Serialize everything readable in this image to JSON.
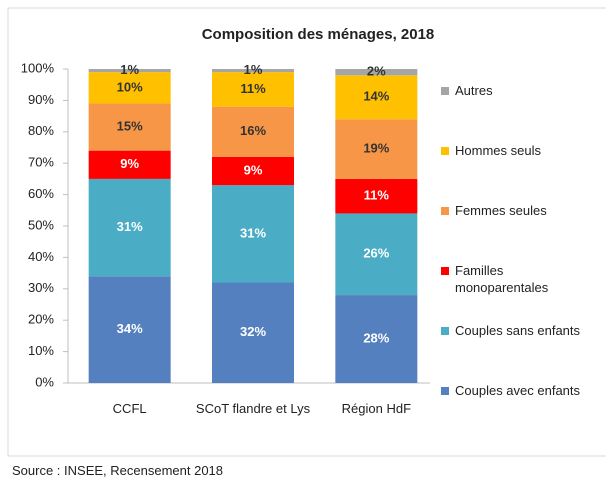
{
  "chart_data": {
    "type": "stacked_bar",
    "title": "Composition des ménages, 2018",
    "categories": [
      "CCFL",
      "SCoT flandre et Lys",
      "Région HdF"
    ],
    "series": [
      {
        "name": "Couples avec enfants",
        "color": "#5580c0",
        "values": [
          34,
          32,
          28
        ],
        "value_labels": [
          "34%",
          "32%",
          "28%"
        ]
      },
      {
        "name": "Couples sans enfants",
        "color": "#4bacc6",
        "values": [
          31,
          31,
          26
        ],
        "value_labels": [
          "31%",
          "31%",
          "26%"
        ]
      },
      {
        "name": "Familles monoparentales",
        "color": "#ff0000",
        "values": [
          9,
          9,
          11
        ],
        "value_labels": [
          "9%",
          "9%",
          "11%"
        ]
      },
      {
        "name": "Femmes seules",
        "color": "#f79646",
        "values": [
          15,
          16,
          19
        ],
        "value_labels": [
          "15%",
          "16%",
          "19%"
        ]
      },
      {
        "name": "Hommes seuls",
        "color": "#ffc000",
        "values": [
          10,
          11,
          14
        ],
        "value_labels": [
          "10%",
          "11%",
          "14%"
        ]
      },
      {
        "name": "Autres",
        "color": "#a5a5a5",
        "values": [
          1,
          1,
          2
        ],
        "value_labels": [
          "1%",
          "1%",
          "2%"
        ]
      }
    ],
    "ylim": [
      0,
      100
    ],
    "yticks": [
      {
        "value": 0,
        "label": "0%"
      },
      {
        "value": 10,
        "label": "10%"
      },
      {
        "value": 20,
        "label": "20%"
      },
      {
        "value": 30,
        "label": "30%"
      },
      {
        "value": 40,
        "label": "40%"
      },
      {
        "value": 50,
        "label": "50%"
      },
      {
        "value": 60,
        "label": "60%"
      },
      {
        "value": 70,
        "label": "70%"
      },
      {
        "value": 80,
        "label": "80%"
      },
      {
        "value": 90,
        "label": "90%"
      },
      {
        "value": 100,
        "label": "100%"
      }
    ],
    "legend": "right",
    "source": "Source : INSEE, Recensement 2018"
  }
}
